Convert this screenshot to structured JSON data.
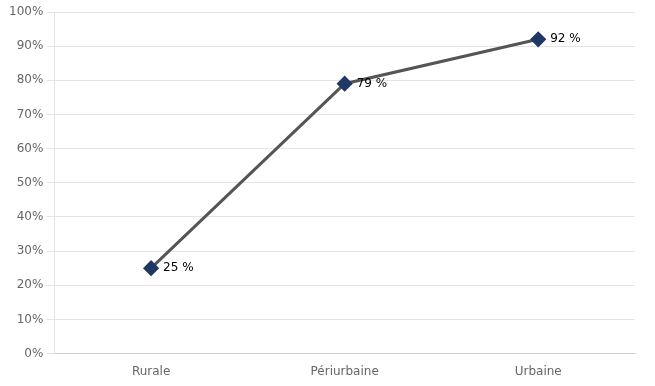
{
  "chart_data": {
    "type": "line",
    "categories": [
      "Rurale",
      "Périurbaine",
      "Urbaine"
    ],
    "values": [
      0.25,
      0.79,
      0.92
    ],
    "value_labels": [
      "25 %",
      "79 %",
      "92 %"
    ],
    "data_labels": true,
    "color": "#555555",
    "colors": [
      "#1f3864",
      "#1f3864",
      "#1f3864"
    ],
    "marker": "diamond",
    "ylim": [
      0,
      1.0
    ],
    "yticks": [
      {
        "value": 0.0,
        "label": "0%"
      },
      {
        "value": 0.1,
        "label": "10%"
      },
      {
        "value": 0.2,
        "label": "20%"
      },
      {
        "value": 0.3,
        "label": "30%"
      },
      {
        "value": 0.4,
        "label": "40%"
      },
      {
        "value": 0.5,
        "label": "50%"
      },
      {
        "value": 0.6,
        "label": "60%"
      },
      {
        "value": 0.7,
        "label": "70%"
      },
      {
        "value": 0.8,
        "label": "80%"
      },
      {
        "value": 0.9,
        "label": "90%"
      },
      {
        "value": 1.0,
        "label": "100%"
      }
    ],
    "grid": true
  }
}
